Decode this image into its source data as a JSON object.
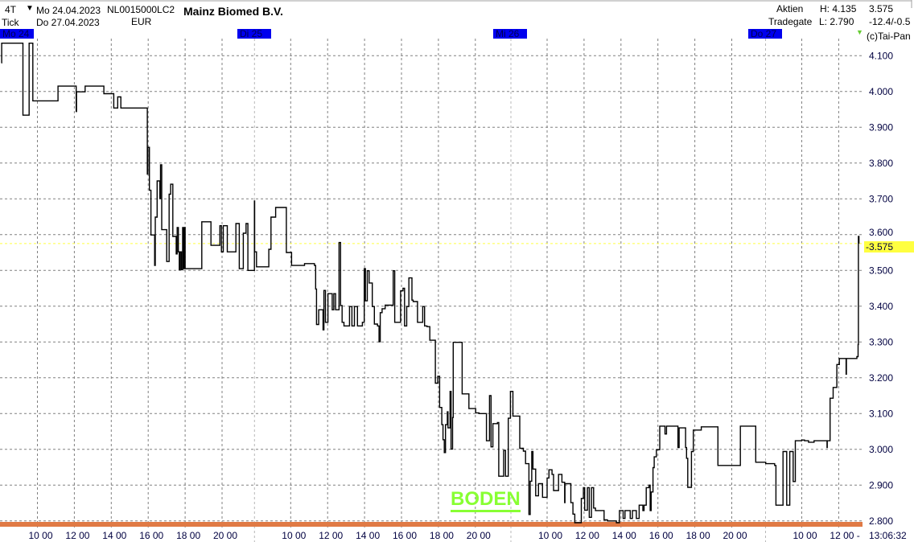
{
  "header": {
    "period": "4T",
    "interval": "Tick",
    "date_from": "Mo 24.04.2023",
    "date_to": "Do 27.04.2023",
    "isin": "NL0015000LC2",
    "currency": "EUR",
    "name": "Mainz Biomed B.V.",
    "category": "Aktien",
    "exchange": "Tradegate",
    "high": "H: 4.135",
    "low": "L: 2.790",
    "last": "3.575",
    "change": "-12.4/-0.5",
    "copyright": "(c)Tai-Pan"
  },
  "colors": {
    "day_box": "#0000ee",
    "price_line": "#000000",
    "last_marker": "#ffff40",
    "boden": "#88ff33",
    "support_line": "#e07a45",
    "grid": "#808080"
  },
  "annotation": "BODEN",
  "chart_data": {
    "type": "line",
    "style": "step",
    "grid": true,
    "ylim": [
      2.78,
      4.14
    ],
    "y_ticks": [
      "4.100",
      "4.000",
      "3.900",
      "3.800",
      "3.700",
      "3.600",
      "3.500",
      "3.400",
      "3.300",
      "3.200",
      "3.100",
      "3.000",
      "2.900",
      "2.800"
    ],
    "last_label": "-3.575",
    "last_value": 3.575,
    "days": [
      {
        "label": "Mo 24",
        "ticks": [
          "10 00",
          "12 00",
          "14 00",
          "16 00",
          "18 00",
          "20 00"
        ]
      },
      {
        "label": "Di 25",
        "ticks": [
          "10 00",
          "12 00",
          "14 00",
          "16 00",
          "18 00",
          "20 00"
        ]
      },
      {
        "label": "Mi 26",
        "ticks": [
          "10 00",
          "12 00",
          "14 00",
          "16 00",
          "18 00",
          "20 00"
        ]
      },
      {
        "label": "Do 27",
        "ticks": [
          "10 00",
          "12 00 -"
        ]
      }
    ],
    "time_label": "13:06:32",
    "ticks": [
      [
        "Mo",
        "08:03",
        4.08
      ],
      [
        "Mo",
        "08:04",
        4.135
      ],
      [
        "Mo",
        "09:13",
        3.934
      ],
      [
        "Mo",
        "09:33",
        4.135
      ],
      [
        "Mo",
        "09:45",
        3.974
      ],
      [
        "Mo",
        "11:07",
        4.015
      ],
      [
        "Mo",
        "12:06",
        3.944
      ],
      [
        "Mo",
        "12:07",
        3.999
      ],
      [
        "Mo",
        "12:35",
        4.015
      ],
      [
        "Mo",
        "13:36",
        3.994
      ],
      [
        "Mo",
        "14:08",
        3.954
      ],
      [
        "Mo",
        "14:21",
        3.985
      ],
      [
        "Mo",
        "14:31",
        3.954
      ],
      [
        "Mo",
        "15:57",
        3.769
      ],
      [
        "Mo",
        "15:59",
        3.844
      ],
      [
        "Mo",
        "16:04",
        3.724
      ],
      [
        "Mo",
        "16:09",
        3.599
      ],
      [
        "Mo",
        "16:21",
        3.514
      ],
      [
        "Mo",
        "16:23",
        3.649
      ],
      [
        "Mo",
        "16:29",
        3.75
      ],
      [
        "Mo",
        "16:38",
        3.701
      ],
      [
        "Mo",
        "16:40",
        3.795
      ],
      [
        "Mo",
        "16:44",
        3.614
      ],
      [
        "Mo",
        "17:00",
        3.525
      ],
      [
        "Mo",
        "17:08",
        3.713
      ],
      [
        "Mo",
        "17:13",
        3.741
      ],
      [
        "Mo",
        "17:20",
        3.595
      ],
      [
        "Mo",
        "17:31",
        3.546
      ],
      [
        "Mo",
        "17:34",
        3.62
      ],
      [
        "Mo",
        "17:38",
        3.552
      ],
      [
        "Mo",
        "17:41",
        3.502
      ],
      [
        "Mo",
        "17:44",
        3.552
      ],
      [
        "Mo",
        "17:48",
        3.502
      ],
      [
        "Mo",
        "17:52",
        3.62
      ],
      [
        "Mo",
        "17:55",
        3.505
      ],
      [
        "Mo",
        "17:58",
        3.62
      ],
      [
        "Mo",
        "18:00",
        3.505
      ],
      [
        "Mo",
        "18:54",
        3.636
      ],
      [
        "Mo",
        "19:24",
        3.57
      ],
      [
        "Mo",
        "19:53",
        3.625
      ],
      [
        "Mo",
        "19:58",
        3.552
      ],
      [
        "Mo",
        "20:04",
        3.625
      ],
      [
        "Mo",
        "20:17",
        3.552
      ],
      [
        "Mo",
        "20:45",
        3.631
      ],
      [
        "Mo",
        "20:56",
        3.505
      ],
      [
        "Mo",
        "21:09",
        3.604
      ],
      [
        "Mo",
        "21:18",
        3.631
      ],
      [
        "Mo",
        "21:24",
        3.5
      ],
      [
        "Di",
        "08:02",
        3.694
      ],
      [
        "Di",
        "08:03",
        3.552
      ],
      [
        "Di",
        "08:09",
        3.51
      ],
      [
        "Di",
        "08:49",
        3.559
      ],
      [
        "Di",
        "08:56",
        3.649
      ],
      [
        "Di",
        "09:11",
        3.676
      ],
      [
        "Di",
        "09:46",
        3.55
      ],
      [
        "Di",
        "10:03",
        3.514
      ],
      [
        "Di",
        "10:45",
        3.519
      ],
      [
        "Di",
        "11:17",
        3.514
      ],
      [
        "Di",
        "11:21",
        3.448
      ],
      [
        "Di",
        "11:24",
        3.349
      ],
      [
        "Di",
        "11:31",
        3.39
      ],
      [
        "Di",
        "11:45",
        3.334
      ],
      [
        "Di",
        "11:48",
        3.444
      ],
      [
        "Di",
        "11:53",
        3.355
      ],
      [
        "Di",
        "12:01",
        3.435
      ],
      [
        "Di",
        "12:15",
        3.39
      ],
      [
        "Di",
        "12:20",
        3.435
      ],
      [
        "Di",
        "12:26",
        3.39
      ],
      [
        "Di",
        "12:37",
        3.578
      ],
      [
        "Di",
        "12:42",
        3.402
      ],
      [
        "Di",
        "12:47",
        3.355
      ],
      [
        "Di",
        "12:53",
        3.345
      ],
      [
        "Di",
        "13:11",
        3.399
      ],
      [
        "Di",
        "13:19",
        3.345
      ],
      [
        "Di",
        "13:27",
        3.399
      ],
      [
        "Di",
        "13:37",
        3.345
      ],
      [
        "Di",
        "13:53",
        3.355
      ],
      [
        "Di",
        "13:59",
        3.505
      ],
      [
        "Di",
        "14:03",
        3.415
      ],
      [
        "Di",
        "14:09",
        3.499
      ],
      [
        "Di",
        "14:15",
        3.465
      ],
      [
        "Di",
        "14:25",
        3.399
      ],
      [
        "Di",
        "14:32",
        3.35
      ],
      [
        "Di",
        "14:42",
        3.345
      ],
      [
        "Di",
        "14:47",
        3.301
      ],
      [
        "Di",
        "14:51",
        3.382
      ],
      [
        "Di",
        "14:57",
        3.393
      ],
      [
        "Di",
        "15:07",
        3.403
      ],
      [
        "Di",
        "15:33",
        3.499
      ],
      [
        "Di",
        "15:38",
        3.355
      ],
      [
        "Di",
        "15:57",
        3.443
      ],
      [
        "Di",
        "16:05",
        3.45
      ],
      [
        "Di",
        "16:10",
        3.345
      ],
      [
        "Di",
        "16:17",
        3.399
      ],
      [
        "Di",
        "16:24",
        3.479
      ],
      [
        "Di",
        "16:34",
        3.417
      ],
      [
        "Di",
        "16:38",
        3.413
      ],
      [
        "Di",
        "16:52",
        3.355
      ],
      [
        "Di",
        "17:09",
        3.399
      ],
      [
        "Di",
        "17:15",
        3.345
      ],
      [
        "Di",
        "17:23",
        3.343
      ],
      [
        "Di",
        "17:32",
        3.305
      ],
      [
        "Di",
        "17:50",
        3.185
      ],
      [
        "Di",
        "17:58",
        3.204
      ],
      [
        "Di",
        "18:04",
        3.117
      ],
      [
        "Di",
        "18:11",
        3.069
      ],
      [
        "Di",
        "18:15",
        3.027
      ],
      [
        "Di",
        "18:19",
        2.991
      ],
      [
        "Di",
        "18:23",
        3.069
      ],
      [
        "Di",
        "18:29",
        3.105
      ],
      [
        "Di",
        "18:31",
        3.06
      ],
      [
        "Di",
        "18:38",
        3.162
      ],
      [
        "Di",
        "18:41",
        3.001
      ],
      [
        "Di",
        "18:46",
        3.089
      ],
      [
        "Di",
        "18:48",
        3.299
      ],
      [
        "Di",
        "19:17",
        3.155
      ],
      [
        "Di",
        "19:39",
        3.114
      ],
      [
        "Di",
        "20:01",
        3.102
      ],
      [
        "Di",
        "20:12",
        3.1
      ],
      [
        "Di",
        "20:36",
        3.024
      ],
      [
        "Di",
        "20:46",
        3.15
      ],
      [
        "Di",
        "20:51",
        3.007
      ],
      [
        "Di",
        "20:57",
        3.072
      ],
      [
        "Di",
        "21:12",
        3.075
      ],
      [
        "Di",
        "21:16",
        2.925
      ],
      [
        "Di",
        "21:32",
        2.997
      ],
      [
        "Di",
        "21:38",
        2.925
      ],
      [
        "Di",
        "21:47",
        3.087
      ],
      [
        "Di",
        "21:54",
        3.162
      ],
      [
        "Mi",
        "08:09",
        3.093
      ],
      [
        "Mi",
        "08:31",
        3.003
      ],
      [
        "Mi",
        "08:43",
        2.995
      ],
      [
        "Mi",
        "08:50",
        2.96
      ],
      [
        "Mi",
        "09:01",
        2.818
      ],
      [
        "Mi",
        "09:05",
        2.911
      ],
      [
        "Mi",
        "09:10",
        2.994
      ],
      [
        "Mi",
        "09:14",
        2.945
      ],
      [
        "Mi",
        "09:23",
        2.87
      ],
      [
        "Mi",
        "09:32",
        2.904
      ],
      [
        "Mi",
        "09:45",
        2.866
      ],
      [
        "Mi",
        "10:00",
        2.92
      ],
      [
        "Mi",
        "10:06",
        2.943
      ],
      [
        "Mi",
        "10:16",
        2.93
      ],
      [
        "Mi",
        "10:21",
        2.885
      ],
      [
        "Mi",
        "10:37",
        2.93
      ],
      [
        "Mi",
        "10:48",
        2.908
      ],
      [
        "Mi",
        "10:57",
        2.851
      ],
      [
        "Mi",
        "10:58",
        2.904
      ],
      [
        "Mi",
        "11:17",
        2.851
      ],
      [
        "Mi",
        "11:24",
        2.819
      ],
      [
        "Mi",
        "11:30",
        2.795
      ],
      [
        "Mi",
        "11:51",
        2.863
      ],
      [
        "Mi",
        "11:58",
        2.893
      ],
      [
        "Mi",
        "12:02",
        2.83
      ],
      [
        "Mi",
        "12:11",
        2.893
      ],
      [
        "Mi",
        "12:17",
        2.81
      ],
      [
        "Mi",
        "12:24",
        2.893
      ],
      [
        "Mi",
        "12:31",
        2.836
      ],
      [
        "Mi",
        "12:37",
        2.829
      ],
      [
        "Mi",
        "13:05",
        2.803
      ],
      [
        "Mi",
        "13:16",
        2.8
      ],
      [
        "Mi",
        "13:45",
        2.795
      ],
      [
        "Mi",
        "13:55",
        2.829
      ],
      [
        "Mi",
        "14:07",
        2.807
      ],
      [
        "Mi",
        "14:13",
        2.829
      ],
      [
        "Mi",
        "14:30",
        2.807
      ],
      [
        "Mi",
        "14:37",
        2.829
      ],
      [
        "Mi",
        "14:50",
        2.807
      ],
      [
        "Mi",
        "14:59",
        2.844
      ],
      [
        "Mi",
        "15:11",
        2.829
      ],
      [
        "Mi",
        "15:15",
        2.844
      ],
      [
        "Mi",
        "15:22",
        2.893
      ],
      [
        "Mi",
        "15:31",
        2.9
      ],
      [
        "Mi",
        "15:35",
        2.829
      ],
      [
        "Mi",
        "15:38",
        2.881
      ],
      [
        "Mi",
        "15:44",
        2.949
      ],
      [
        "Mi",
        "15:48",
        2.979
      ],
      [
        "Mi",
        "15:55",
        2.999
      ],
      [
        "Mi",
        "16:06",
        3.065
      ],
      [
        "Mi",
        "16:23",
        3.043
      ],
      [
        "Mi",
        "16:28",
        3.065
      ],
      [
        "Mi",
        "17:05",
        3.005
      ],
      [
        "Mi",
        "17:09",
        3.06
      ],
      [
        "Mi",
        "17:30",
        3.005
      ],
      [
        "Mi",
        "17:33",
        2.975
      ],
      [
        "Mi",
        "17:37",
        2.894
      ],
      [
        "Mi",
        "17:49",
        2.994
      ],
      [
        "Mi",
        "17:55",
        3.054
      ],
      [
        "Mi",
        "18:21",
        3.063
      ],
      [
        "Mi",
        "19:15",
        2.955
      ],
      [
        "Mi",
        "20:28",
        3.065
      ],
      [
        "Mi",
        "21:18",
        2.964
      ],
      [
        "Do",
        "08:03",
        2.96
      ],
      [
        "Do",
        "08:32",
        2.955
      ],
      [
        "Do",
        "08:36",
        2.844
      ],
      [
        "Do",
        "08:59",
        2.994
      ],
      [
        "Do",
        "09:11",
        2.844
      ],
      [
        "Do",
        "09:21",
        2.994
      ],
      [
        "Do",
        "09:32",
        2.91
      ],
      [
        "Do",
        "09:39",
        3.024
      ],
      [
        "Do",
        "10:00",
        3.026
      ],
      [
        "Do",
        "10:09",
        3.024
      ],
      [
        "Do",
        "10:22",
        3.02
      ],
      [
        "Do",
        "10:40",
        3.024
      ],
      [
        "Do",
        "11:22",
        3.005
      ],
      [
        "Do",
        "11:23",
        3.024
      ],
      [
        "Do",
        "11:32",
        3.143
      ],
      [
        "Do",
        "11:42",
        3.173
      ],
      [
        "Do",
        "11:54",
        3.237
      ],
      [
        "Do",
        "12:02",
        3.254
      ],
      [
        "Do",
        "12:24",
        3.21
      ],
      [
        "Do",
        "12:25",
        3.254
      ],
      [
        "Do",
        "12:59",
        3.259
      ],
      [
        "Do",
        "13:03",
        3.293
      ],
      [
        "Do",
        "13:04",
        3.595
      ],
      [
        "Do",
        "13:06",
        3.575
      ]
    ]
  }
}
